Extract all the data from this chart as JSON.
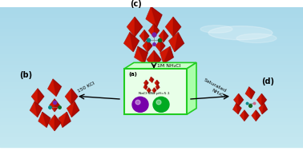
{
  "bg_top": "#a8d8ea",
  "bg_bottom": "#c5e8f0",
  "box_edge_color": "#22cc22",
  "box_face_color": "#e8ffe8",
  "box_label": "(a)",
  "box_text": "NaCl·NNa pH=5.1",
  "sphere1_color": "#7700aa",
  "sphere2_color": "#00aa22",
  "label_c": "(c)",
  "label_b": "(b)",
  "label_d": "(d)",
  "arrow1_label": "1M NH₄Cl",
  "arrow2_label": "150 KCl",
  "arrow3_label1": "Saturated",
  "arrow3_label2": "NH₄Cl",
  "cluster_red": "#cc1100",
  "cluster_dark": "#880000",
  "cluster_light": "#ee3311",
  "metal_purple": "#7722aa",
  "metal_teal": "#008888",
  "metal_green": "#116622",
  "metal_pink": "#cc6688"
}
